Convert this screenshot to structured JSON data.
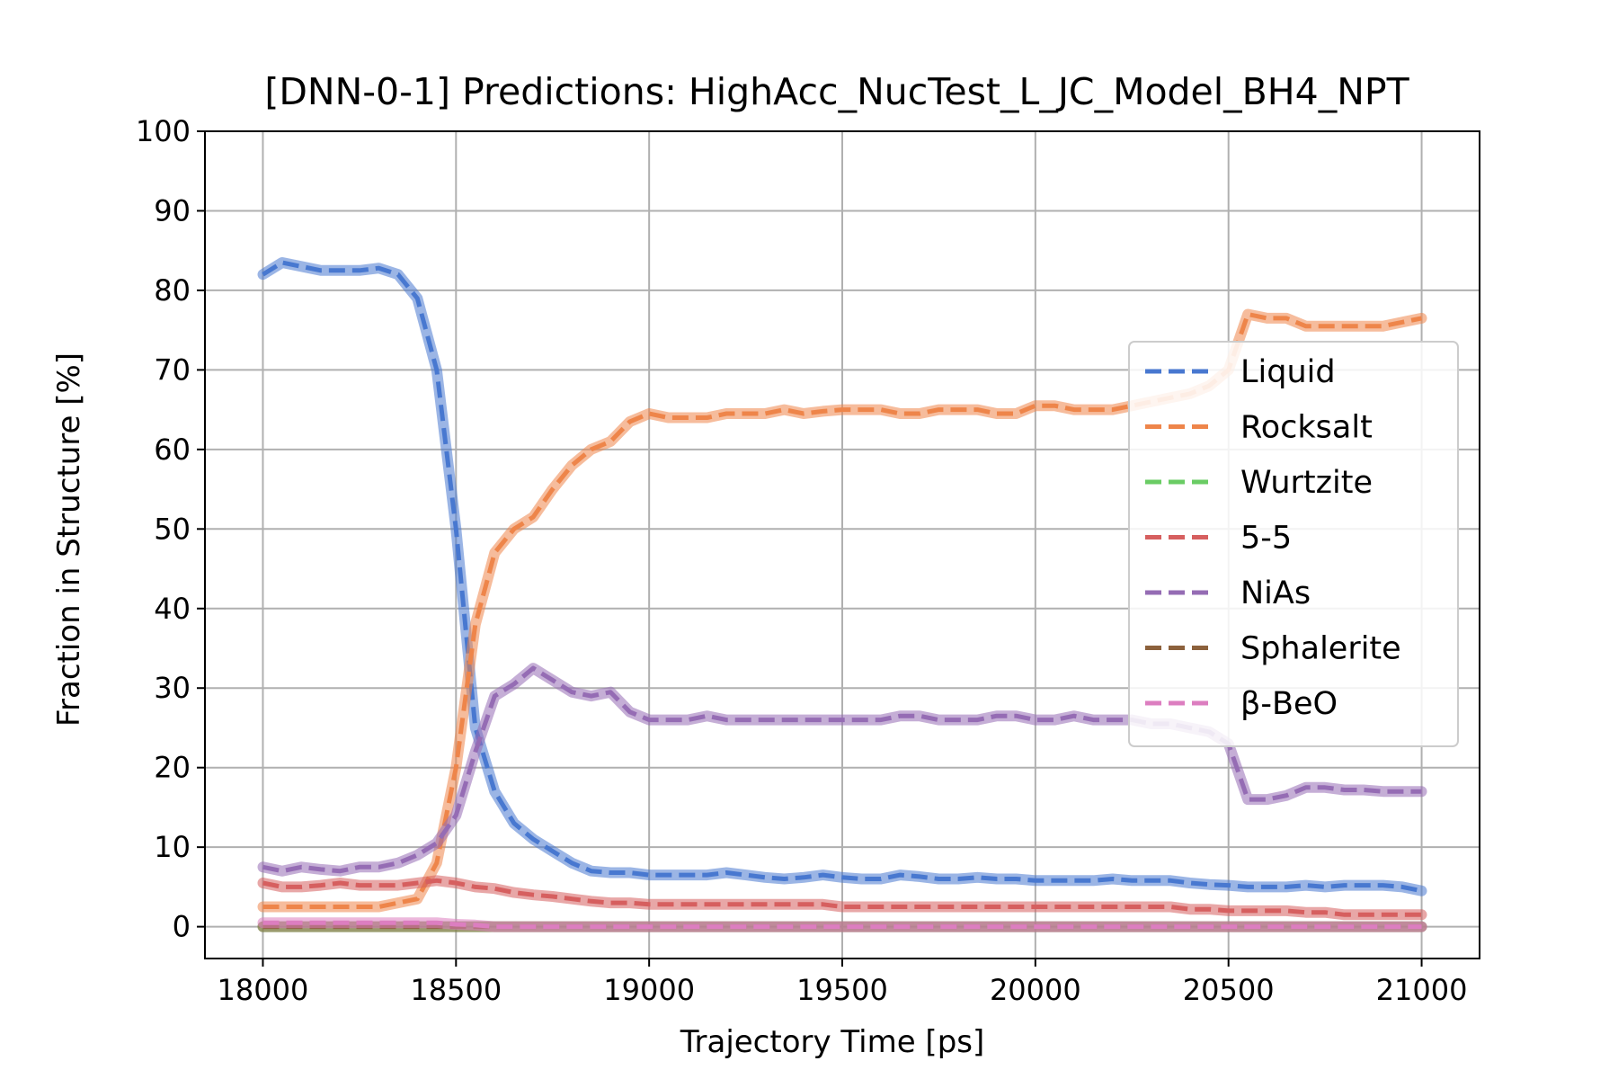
{
  "chart_data": {
    "type": "line",
    "title": "[DNN-0-1] Predictions: HighAcc_NucTest_L_JC_Model_BH4_NPT",
    "xlabel": "Trajectory Time [ps]",
    "ylabel": "Fraction in Structure [%]",
    "xlim": [
      17850,
      21150
    ],
    "ylim": [
      -4,
      100
    ],
    "xticks": [
      18000,
      18500,
      19000,
      19500,
      20000,
      20500,
      21000
    ],
    "yticks": [
      0,
      10,
      20,
      30,
      40,
      50,
      60,
      70,
      80,
      90,
      100
    ],
    "grid": true,
    "legend_position": "center-right",
    "x": [
      18000,
      18050,
      18100,
      18150,
      18200,
      18250,
      18300,
      18350,
      18400,
      18450,
      18500,
      18550,
      18600,
      18650,
      18700,
      18750,
      18800,
      18850,
      18900,
      18950,
      19000,
      19050,
      19100,
      19150,
      19200,
      19250,
      19300,
      19350,
      19400,
      19450,
      19500,
      19550,
      19600,
      19650,
      19700,
      19750,
      19800,
      19850,
      19900,
      19950,
      20000,
      20050,
      20100,
      20150,
      20200,
      20250,
      20300,
      20350,
      20400,
      20450,
      20500,
      20550,
      20600,
      20650,
      20700,
      20750,
      20800,
      20850,
      20900,
      20950,
      21000
    ],
    "series": [
      {
        "name": "Liquid",
        "color": "#4878d0",
        "values": [
          82,
          83.5,
          83,
          82.5,
          82.5,
          82.5,
          82.8,
          82,
          79,
          70,
          50,
          25,
          17,
          13,
          11,
          9.5,
          8,
          7,
          6.8,
          6.8,
          6.5,
          6.5,
          6.5,
          6.5,
          6.8,
          6.5,
          6.2,
          6,
          6.2,
          6.5,
          6.2,
          6,
          6,
          6.5,
          6.3,
          6,
          6,
          6.2,
          6,
          6,
          5.8,
          5.8,
          5.8,
          5.8,
          6,
          5.8,
          5.8,
          5.8,
          5.5,
          5.3,
          5.2,
          5,
          5,
          5,
          5.2,
          5,
          5.2,
          5.2,
          5.2,
          5,
          4.5
        ]
      },
      {
        "name": "Rocksalt",
        "color": "#ee854a",
        "values": [
          2.5,
          2.5,
          2.5,
          2.5,
          2.5,
          2.5,
          2.5,
          3,
          3.5,
          8,
          20,
          38,
          47,
          50,
          51.5,
          55,
          58,
          60,
          61,
          63.5,
          64.5,
          64,
          64,
          64,
          64.5,
          64.5,
          64.5,
          65,
          64.5,
          64.8,
          65,
          65,
          65,
          64.5,
          64.5,
          65,
          65,
          65,
          64.5,
          64.5,
          65.5,
          65.5,
          65,
          65,
          65,
          65.5,
          66,
          66.5,
          67,
          68,
          70,
          77,
          76.5,
          76.5,
          75.5,
          75.5,
          75.5,
          75.5,
          75.5,
          76,
          76.5
        ]
      },
      {
        "name": "Wurtzite",
        "color": "#6acc64",
        "values": [
          0,
          0,
          0,
          0,
          0,
          0,
          0,
          0,
          0,
          0,
          0,
          0,
          0,
          0,
          0,
          0,
          0,
          0,
          0,
          0,
          0,
          0,
          0,
          0,
          0,
          0,
          0,
          0,
          0,
          0,
          0,
          0,
          0,
          0,
          0,
          0,
          0,
          0,
          0,
          0,
          0,
          0,
          0,
          0,
          0,
          0,
          0,
          0,
          0,
          0,
          0,
          0,
          0,
          0,
          0,
          0,
          0,
          0,
          0,
          0,
          0
        ]
      },
      {
        "name": "5-5",
        "color": "#d65f5f",
        "values": [
          5.5,
          5,
          5,
          5.2,
          5.5,
          5.2,
          5.2,
          5.2,
          5.5,
          5.8,
          5.5,
          5,
          4.8,
          4.3,
          4,
          3.8,
          3.5,
          3.2,
          3,
          3,
          2.8,
          2.8,
          2.8,
          2.8,
          2.8,
          2.8,
          2.8,
          2.8,
          2.8,
          2.8,
          2.5,
          2.5,
          2.5,
          2.5,
          2.5,
          2.5,
          2.5,
          2.5,
          2.5,
          2.5,
          2.5,
          2.5,
          2.5,
          2.5,
          2.5,
          2.5,
          2.5,
          2.5,
          2.2,
          2.2,
          2,
          2,
          2,
          2,
          1.8,
          1.8,
          1.5,
          1.5,
          1.5,
          1.5,
          1.5
        ]
      },
      {
        "name": "NiAs",
        "color": "#956cb4",
        "values": [
          7.5,
          7,
          7.5,
          7.2,
          7,
          7.5,
          7.5,
          8,
          9,
          10.5,
          14,
          22,
          29,
          30.5,
          32.5,
          31,
          29.5,
          29,
          29.5,
          27,
          26,
          26,
          26,
          26.5,
          26,
          26,
          26,
          26,
          26,
          26,
          26,
          26,
          26,
          26.5,
          26.5,
          26,
          26,
          26,
          26.5,
          26.5,
          26,
          26,
          26.5,
          26,
          26,
          26,
          25.5,
          25.5,
          25,
          24.5,
          23,
          16,
          16,
          16.5,
          17.5,
          17.5,
          17.2,
          17.2,
          17,
          17,
          17
        ]
      },
      {
        "name": "Sphalerite",
        "color": "#8c613c",
        "values": [
          0,
          0,
          0,
          0,
          0,
          0,
          0,
          0,
          0,
          0,
          0,
          0,
          0,
          0,
          0,
          0,
          0,
          0,
          0,
          0,
          0,
          0,
          0,
          0,
          0,
          0,
          0,
          0,
          0,
          0,
          0,
          0,
          0,
          0,
          0,
          0,
          0,
          0,
          0,
          0,
          0,
          0,
          0,
          0,
          0,
          0,
          0,
          0,
          0,
          0,
          0,
          0,
          0,
          0,
          0,
          0,
          0,
          0,
          0,
          0,
          0
        ]
      },
      {
        "name": "β-BeO",
        "color": "#dc7ec0",
        "values": [
          0.5,
          0.5,
          0.5,
          0.5,
          0.5,
          0.5,
          0.5,
          0.5,
          0.5,
          0.5,
          0.3,
          0.2,
          0,
          0,
          0,
          0,
          0,
          0,
          0,
          0,
          0,
          0,
          0,
          0,
          0,
          0,
          0,
          0,
          0,
          0,
          0,
          0,
          0,
          0,
          0,
          0,
          0,
          0,
          0,
          0,
          0,
          0,
          0,
          0,
          0,
          0,
          0,
          0,
          0,
          0,
          0,
          0,
          0,
          0,
          0,
          0,
          0,
          0,
          0,
          0,
          0
        ]
      }
    ]
  }
}
